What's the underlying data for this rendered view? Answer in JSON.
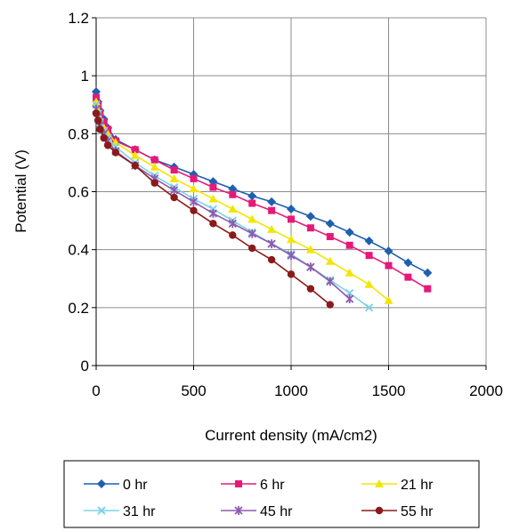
{
  "chart_data": {
    "type": "line",
    "title": "",
    "xlabel": "Current density (mA/cm2)",
    "ylabel": "Potential (V)",
    "xlim": [
      0,
      2000
    ],
    "ylim": [
      0,
      1.2
    ],
    "xticks": [
      "0",
      "500",
      "1000",
      "1500",
      "2000"
    ],
    "yticks": [
      "0",
      "0.2",
      "0.4",
      "0.6",
      "0.8",
      "1",
      "1.2"
    ],
    "grid": true,
    "legend_position": "bottom",
    "series": [
      {
        "name": "0 hr",
        "color": "#1f5faf",
        "marker": "diamond",
        "x": [
          0,
          10,
          20,
          40,
          60,
          100,
          200,
          300,
          400,
          500,
          600,
          700,
          800,
          900,
          1000,
          1100,
          1200,
          1300,
          1400,
          1500,
          1600,
          1700
        ],
        "y": [
          0.945,
          0.91,
          0.88,
          0.85,
          0.82,
          0.78,
          0.745,
          0.71,
          0.685,
          0.66,
          0.635,
          0.61,
          0.585,
          0.565,
          0.54,
          0.515,
          0.49,
          0.46,
          0.43,
          0.395,
          0.355,
          0.32
        ]
      },
      {
        "name": "6 hr",
        "color": "#e6197a",
        "marker": "square",
        "x": [
          0,
          10,
          20,
          40,
          60,
          100,
          200,
          300,
          400,
          500,
          600,
          700,
          800,
          900,
          1000,
          1100,
          1200,
          1300,
          1400,
          1500,
          1600,
          1700
        ],
        "y": [
          0.925,
          0.9,
          0.87,
          0.84,
          0.815,
          0.775,
          0.745,
          0.71,
          0.675,
          0.645,
          0.615,
          0.59,
          0.56,
          0.535,
          0.505,
          0.475,
          0.445,
          0.415,
          0.38,
          0.345,
          0.305,
          0.265
        ]
      },
      {
        "name": "21 hr",
        "color": "#f2e600",
        "marker": "triangle",
        "x": [
          0,
          10,
          20,
          40,
          60,
          100,
          200,
          300,
          400,
          500,
          600,
          700,
          800,
          900,
          1000,
          1100,
          1200,
          1300,
          1400,
          1500
        ],
        "y": [
          0.91,
          0.88,
          0.85,
          0.82,
          0.8,
          0.77,
          0.725,
          0.685,
          0.645,
          0.61,
          0.575,
          0.54,
          0.505,
          0.47,
          0.435,
          0.4,
          0.36,
          0.32,
          0.28,
          0.225
        ]
      },
      {
        "name": "31 hr",
        "color": "#7dd3e8",
        "marker": "x",
        "x": [
          0,
          10,
          20,
          40,
          60,
          100,
          200,
          300,
          400,
          500,
          600,
          700,
          800,
          900,
          1000,
          1100,
          1200,
          1300,
          1400
        ],
        "y": [
          0.9,
          0.87,
          0.84,
          0.81,
          0.785,
          0.755,
          0.7,
          0.655,
          0.615,
          0.575,
          0.54,
          0.5,
          0.46,
          0.42,
          0.385,
          0.34,
          0.295,
          0.25,
          0.2
        ]
      },
      {
        "name": "45 hr",
        "color": "#8e5ab0",
        "marker": "star",
        "x": [
          0,
          10,
          20,
          40,
          60,
          100,
          200,
          300,
          400,
          500,
          600,
          700,
          800,
          900,
          1000,
          1100,
          1200,
          1300
        ],
        "y": [
          0.885,
          0.86,
          0.83,
          0.8,
          0.775,
          0.74,
          0.69,
          0.645,
          0.605,
          0.565,
          0.525,
          0.49,
          0.455,
          0.42,
          0.38,
          0.34,
          0.29,
          0.23
        ]
      },
      {
        "name": "55 hr",
        "color": "#8b1a1a",
        "marker": "circle",
        "x": [
          0,
          10,
          20,
          40,
          60,
          100,
          200,
          300,
          400,
          500,
          600,
          700,
          800,
          900,
          1000,
          1100,
          1200
        ],
        "y": [
          0.87,
          0.845,
          0.815,
          0.785,
          0.76,
          0.735,
          0.69,
          0.63,
          0.58,
          0.535,
          0.49,
          0.45,
          0.405,
          0.365,
          0.315,
          0.265,
          0.21
        ]
      }
    ]
  }
}
